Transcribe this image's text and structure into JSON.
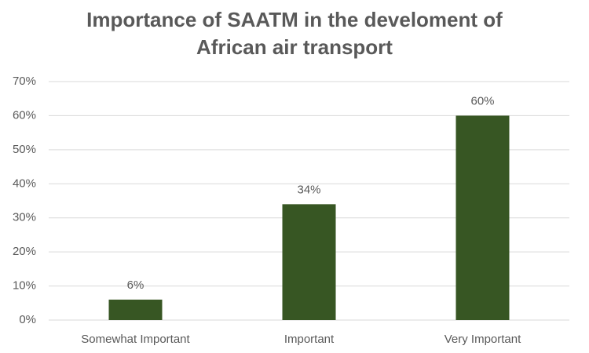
{
  "chart_data": {
    "type": "bar",
    "title": "Importance of SAATM in the develoment of African air transport",
    "categories": [
      "Somewhat Important",
      "Important",
      "Very Important"
    ],
    "values": [
      6,
      34,
      60
    ],
    "value_labels": [
      "6%",
      "34%",
      "60%"
    ],
    "color": "#375623",
    "ylim": [
      0,
      70
    ],
    "yticks": [
      {
        "value": 0,
        "label": "0%"
      },
      {
        "value": 10,
        "label": "10%"
      },
      {
        "value": 20,
        "label": "20%"
      },
      {
        "value": 30,
        "label": "30%"
      },
      {
        "value": 40,
        "label": "40%"
      },
      {
        "value": 50,
        "label": "50%"
      },
      {
        "value": 60,
        "label": "60%"
      },
      {
        "value": 70,
        "label": "70%"
      }
    ],
    "grid": true
  }
}
